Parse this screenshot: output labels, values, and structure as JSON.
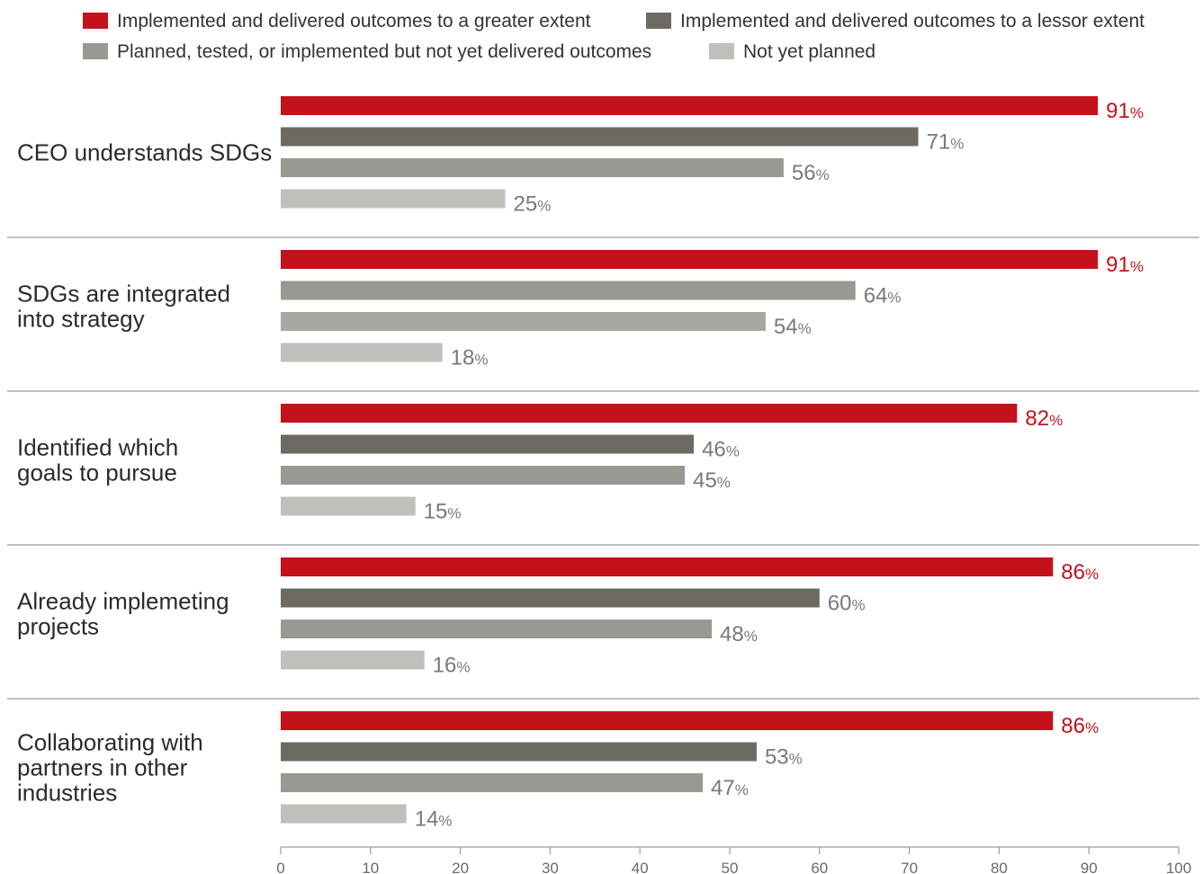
{
  "chart_data": {
    "type": "bar",
    "orientation": "horizontal",
    "grid": false,
    "legend_position": "top",
    "xlim": [
      0,
      100
    ],
    "x_ticks": [
      "0",
      "10",
      "20",
      "30",
      "40",
      "50",
      "60",
      "70",
      "80",
      "90",
      "100"
    ],
    "value_suffix": "%",
    "legend": [
      {
        "label": "Implemented and delivered outcomes to a greater extent",
        "color": "#c3121c"
      },
      {
        "label": "Implemented and delivered outcomes to a lessor extent",
        "color": "#6c6a63"
      },
      {
        "label": "Planned, tested, or implemented but not yet delivered outcomes",
        "color": "#9a9892"
      },
      {
        "label": "Not yet planned",
        "color": "#c0bfbb"
      }
    ],
    "groups": [
      {
        "label": [
          "CEO understands SDGs"
        ],
        "bars": [
          {
            "value": 91,
            "color": "#c3121c",
            "label_color": "#c3121c"
          },
          {
            "value": 71,
            "color": "#6c6a63",
            "label_color": "#7a7975"
          },
          {
            "value": 56,
            "color": "#9a9892",
            "label_color": "#7a7975"
          },
          {
            "value": 25,
            "color": "#c0bfbb",
            "label_color": "#7a7975"
          }
        ]
      },
      {
        "label": [
          "SDGs are integrated",
          "into strategy"
        ],
        "bars": [
          {
            "value": 91,
            "color": "#c3121c",
            "label_color": "#c3121c"
          },
          {
            "value": 64,
            "color": "#9a9892",
            "label_color": "#7a7975"
          },
          {
            "value": 54,
            "color": "#a8a7a2",
            "label_color": "#7a7975"
          },
          {
            "value": 18,
            "color": "#c0bfbb",
            "label_color": "#7a7975"
          }
        ]
      },
      {
        "label": [
          "Identified which",
          "goals to pursue"
        ],
        "bars": [
          {
            "value": 82,
            "color": "#c3121c",
            "label_color": "#c3121c"
          },
          {
            "value": 46,
            "color": "#6c6a63",
            "label_color": "#7a7975"
          },
          {
            "value": 45,
            "color": "#9a9892",
            "label_color": "#7a7975"
          },
          {
            "value": 15,
            "color": "#c0bfbb",
            "label_color": "#7a7975"
          }
        ]
      },
      {
        "label": [
          "Already implemeting",
          "projects"
        ],
        "bars": [
          {
            "value": 86,
            "color": "#c3121c",
            "label_color": "#c3121c"
          },
          {
            "value": 60,
            "color": "#6c6a63",
            "label_color": "#7a7975"
          },
          {
            "value": 48,
            "color": "#9a9892",
            "label_color": "#7a7975"
          },
          {
            "value": 16,
            "color": "#c0bfbb",
            "label_color": "#7a7975"
          }
        ]
      },
      {
        "label": [
          "Collaborating with",
          "partners in other",
          "industries"
        ],
        "bars": [
          {
            "value": 86,
            "color": "#c3121c",
            "label_color": "#c3121c"
          },
          {
            "value": 53,
            "color": "#6c6a63",
            "label_color": "#7a7975"
          },
          {
            "value": 47,
            "color": "#9a9892",
            "label_color": "#7a7975"
          },
          {
            "value": 14,
            "color": "#c0bfbb",
            "label_color": "#7a7975"
          }
        ]
      }
    ]
  }
}
